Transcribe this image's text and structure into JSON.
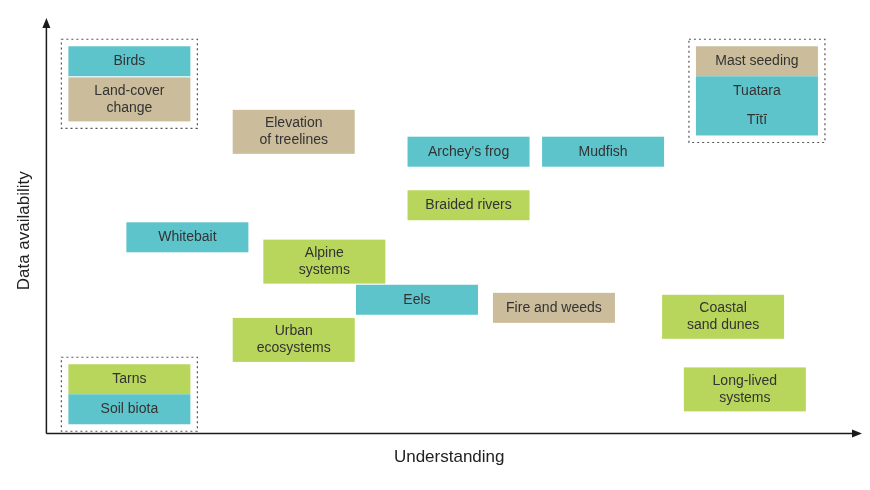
{
  "chart_data": {
    "type": "scatter",
    "x_label": "Understanding",
    "y_label": "Data availability",
    "xlim": [
      0,
      10
    ],
    "ylim": [
      0,
      10
    ],
    "tick_labels": false,
    "grid": false,
    "points": [
      {
        "label": "Birds",
        "x": 1.03,
        "y": 9.18,
        "color": "#5ec4cc"
      },
      {
        "label": [
          "Land-cover",
          "change"
        ],
        "x": 1.03,
        "y": 8.24,
        "color": "#cbbd9b"
      },
      {
        "label": [
          "Elevation",
          "of treelines"
        ],
        "x": 3.07,
        "y": 7.44,
        "color": "#cbbd9b"
      },
      {
        "label": "Archey's frog",
        "x": 5.24,
        "y": 6.95,
        "color": "#5ec4cc"
      },
      {
        "label": "Mudfish",
        "x": 6.91,
        "y": 6.95,
        "color": "#5ec4cc"
      },
      {
        "label": "Mast seeding",
        "x": 8.82,
        "y": 9.18,
        "color": "#cbbd9b"
      },
      {
        "label": "Tuatara",
        "x": 8.82,
        "y": 8.44,
        "color": "#5ec4cc"
      },
      {
        "label": "Tītī",
        "x": 8.82,
        "y": 7.72,
        "color": "#5ec4cc"
      },
      {
        "label": "Braided rivers",
        "x": 5.24,
        "y": 5.63,
        "color": "#b8d65c"
      },
      {
        "label": "Whitebait",
        "x": 1.75,
        "y": 4.84,
        "color": "#5ec4cc"
      },
      {
        "label": [
          "Alpine",
          "systems"
        ],
        "x": 3.45,
        "y": 4.24,
        "color": "#b8d65c"
      },
      {
        "label": "Eels",
        "x": 4.6,
        "y": 3.3,
        "color": "#5ec4cc"
      },
      {
        "label": "Fire and weeds",
        "x": 6.3,
        "y": 3.1,
        "color": "#cbbd9b"
      },
      {
        "label": [
          "Coastal",
          "sand dunes"
        ],
        "x": 8.4,
        "y": 2.88,
        "color": "#b8d65c"
      },
      {
        "label": [
          "Urban",
          "ecosystems"
        ],
        "x": 3.07,
        "y": 2.31,
        "color": "#b8d65c"
      },
      {
        "label": "Tarns",
        "x": 1.03,
        "y": 1.34,
        "color": "#b8d65c"
      },
      {
        "label": "Soil biota",
        "x": 1.03,
        "y": 0.6,
        "color": "#5ec4cc"
      },
      {
        "label": [
          "Long-lived",
          "systems"
        ],
        "x": 8.67,
        "y": 1.09,
        "color": "#b8d65c"
      }
    ],
    "groups": [
      [
        "Birds",
        "Land-cover change"
      ],
      [
        "Mast seeding",
        "Tuatara",
        "Tītī"
      ],
      [
        "Tarns",
        "Soil biota"
      ]
    ]
  }
}
